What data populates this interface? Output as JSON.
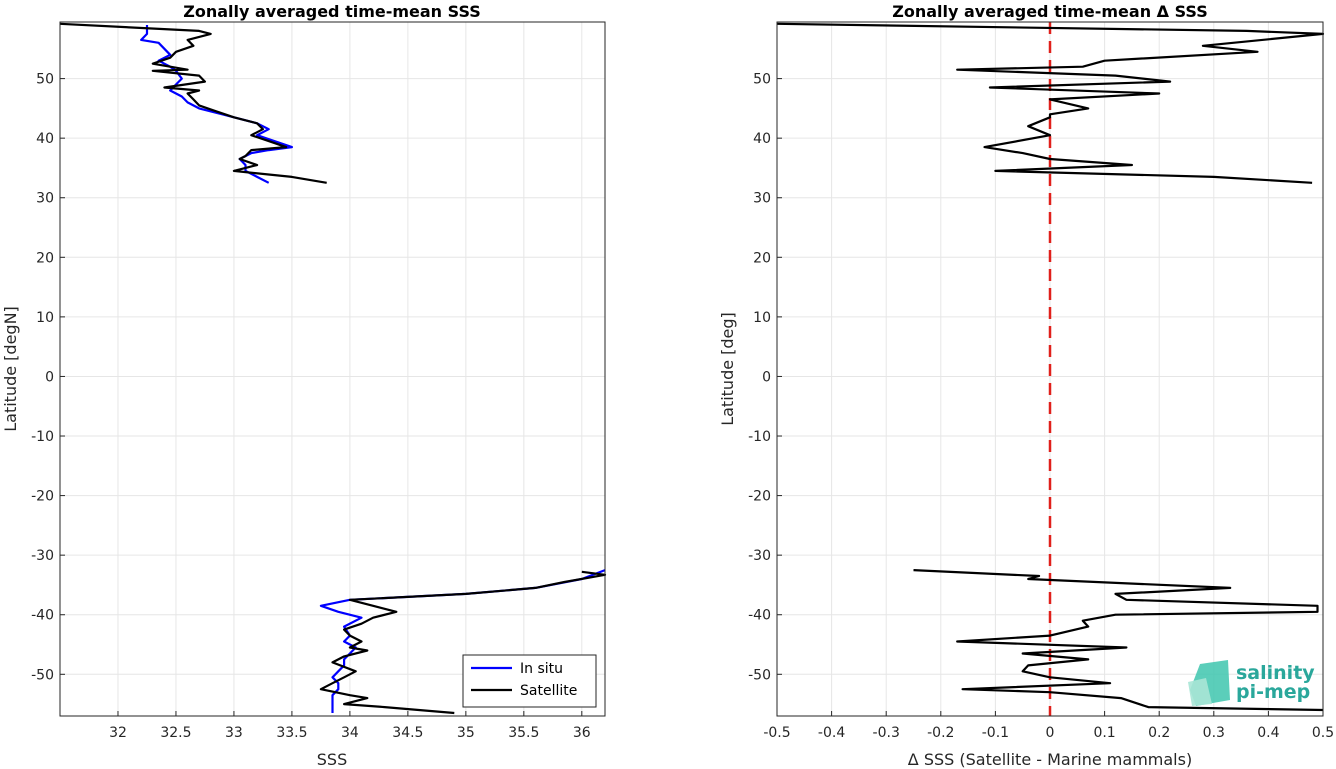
{
  "chart_data": [
    {
      "type": "line",
      "title": "Zonally averaged time-mean SSS",
      "xlabel": "SSS",
      "ylabel": "Latitude [degN]",
      "xlim": [
        31.5,
        36.2
      ],
      "ylim": [
        -57,
        59.5
      ],
      "xticks": [
        32,
        32.5,
        33,
        33.5,
        34,
        34.5,
        35,
        35.5,
        36
      ],
      "yticks": [
        -50,
        -40,
        -30,
        -20,
        -10,
        0,
        10,
        20,
        30,
        40,
        50
      ],
      "grid": true,
      "legend": {
        "position": "bottom-right",
        "entries": [
          "In situ",
          "Satellite"
        ]
      },
      "series": [
        {
          "name": "In situ",
          "color": "#0000ff",
          "segments": [
            [
              [
                32.25,
                59
              ],
              [
                32.25,
                57.5
              ],
              [
                32.2,
                56.5
              ],
              [
                32.35,
                56
              ],
              [
                32.4,
                55
              ],
              [
                32.45,
                54
              ],
              [
                32.35,
                53
              ],
              [
                32.45,
                52
              ],
              [
                32.5,
                51.3
              ],
              [
                32.55,
                50
              ],
              [
                32.5,
                49
              ],
              [
                32.45,
                48
              ],
              [
                32.55,
                47
              ],
              [
                32.6,
                46
              ],
              [
                32.7,
                45
              ],
              [
                32.9,
                44
              ],
              [
                33.2,
                42.5
              ],
              [
                33.3,
                41.5
              ],
              [
                33.2,
                40.5
              ],
              [
                33.5,
                38.5
              ],
              [
                33.3,
                38
              ],
              [
                33.15,
                37.5
              ],
              [
                33.05,
                36.5
              ],
              [
                33.1,
                35.5
              ],
              [
                33.1,
                34.5
              ],
              [
                33.2,
                33.5
              ],
              [
                33.3,
                32.5
              ]
            ],
            [
              [
                36.2,
                -32.5
              ],
              [
                36.0,
                -34
              ],
              [
                35.6,
                -35.5
              ],
              [
                35.0,
                -36.5
              ],
              [
                34.0,
                -37.5
              ],
              [
                33.75,
                -38.5
              ],
              [
                33.9,
                -39.5
              ],
              [
                34.1,
                -40.5
              ],
              [
                33.95,
                -42
              ],
              [
                34.0,
                -43.5
              ],
              [
                33.95,
                -44.5
              ],
              [
                34.05,
                -45.5
              ],
              [
                34.0,
                -46.5
              ],
              [
                33.95,
                -47.5
              ],
              [
                33.95,
                -48.5
              ],
              [
                33.9,
                -49.5
              ],
              [
                33.85,
                -50.5
              ],
              [
                33.9,
                -51.5
              ],
              [
                33.9,
                -52.5
              ],
              [
                33.85,
                -53.5
              ],
              [
                33.85,
                -54.5
              ],
              [
                33.85,
                -55.5
              ],
              [
                33.85,
                -56.5
              ]
            ]
          ]
        },
        {
          "name": "Satellite",
          "color": "#000000",
          "segments": [
            [
              [
                31.5,
                59.2
              ],
              [
                32.7,
                58
              ],
              [
                32.8,
                57.5
              ],
              [
                32.6,
                56.5
              ],
              [
                32.65,
                55.5
              ],
              [
                32.5,
                54.5
              ],
              [
                32.45,
                53.5
              ],
              [
                32.3,
                52.5
              ],
              [
                32.6,
                51.5
              ],
              [
                32.3,
                51.3
              ],
              [
                32.7,
                50.5
              ],
              [
                32.75,
                49.5
              ],
              [
                32.4,
                48.5
              ],
              [
                32.7,
                48
              ],
              [
                32.6,
                47.5
              ],
              [
                32.65,
                46.5
              ],
              [
                32.7,
                45.5
              ],
              [
                32.85,
                44.5
              ],
              [
                33.0,
                43.5
              ],
              [
                33.2,
                42.5
              ],
              [
                33.25,
                41.5
              ],
              [
                33.15,
                40.5
              ],
              [
                33.3,
                39.5
              ],
              [
                33.45,
                38.5
              ],
              [
                33.15,
                38
              ],
              [
                33.1,
                37
              ],
              [
                33.05,
                36.5
              ],
              [
                33.2,
                35.5
              ],
              [
                33.0,
                34.5
              ],
              [
                33.5,
                33.5
              ],
              [
                33.8,
                32.5
              ]
            ],
            [
              [
                36.0,
                -32.8
              ],
              [
                36.2,
                -33.3
              ],
              [
                35.85,
                -34.5
              ],
              [
                35.6,
                -35.5
              ],
              [
                35.0,
                -36.5
              ],
              [
                34.0,
                -37.5
              ],
              [
                34.2,
                -38.5
              ],
              [
                34.4,
                -39.5
              ],
              [
                34.2,
                -40.5
              ],
              [
                34.1,
                -41.5
              ],
              [
                33.95,
                -42.5
              ],
              [
                34.0,
                -43.5
              ],
              [
                34.1,
                -44.5
              ],
              [
                34.0,
                -45.5
              ],
              [
                34.15,
                -46
              ],
              [
                33.95,
                -47
              ],
              [
                33.85,
                -48
              ],
              [
                34.05,
                -49.5
              ],
              [
                33.95,
                -50.5
              ],
              [
                33.85,
                -51.5
              ],
              [
                33.75,
                -52.5
              ],
              [
                34.0,
                -53.5
              ],
              [
                34.15,
                -54
              ],
              [
                33.95,
                -55
              ],
              [
                34.3,
                -55.5
              ],
              [
                34.9,
                -56.5
              ]
            ]
          ]
        }
      ]
    },
    {
      "type": "line",
      "title": "Zonally averaged time-mean Δ SSS",
      "xlabel": "Δ SSS (Satellite - Marine mammals)",
      "ylabel": "Latitude [deg]",
      "xlim": [
        -0.5,
        0.5
      ],
      "ylim": [
        -57,
        59.5
      ],
      "xticks": [
        -0.5,
        -0.4,
        -0.3,
        -0.2,
        -0.1,
        0,
        0.1,
        0.2,
        0.3,
        0.4,
        0.5
      ],
      "yticks": [
        -50,
        -40,
        -30,
        -20,
        -10,
        0,
        10,
        20,
        30,
        40,
        50
      ],
      "grid": true,
      "reference_line": {
        "x": 0,
        "color": "#e0201b",
        "style": "dashed"
      },
      "series": [
        {
          "color": "#000000",
          "segments": [
            [
              [
                -0.5,
                59.2
              ],
              [
                0.36,
                58
              ],
              [
                0.5,
                57.5
              ],
              [
                0.28,
                55.5
              ],
              [
                0.38,
                54.5
              ],
              [
                0.1,
                53
              ],
              [
                0.06,
                52
              ],
              [
                -0.17,
                51.5
              ],
              [
                0.12,
                50.5
              ],
              [
                0.22,
                49.5
              ],
              [
                -0.11,
                48.5
              ],
              [
                0.2,
                47.5
              ],
              [
                0.0,
                46.5
              ],
              [
                0.07,
                45
              ],
              [
                0.0,
                44
              ],
              [
                0.0,
                43.5
              ],
              [
                -0.04,
                42
              ],
              [
                0.0,
                40.5
              ],
              [
                -0.12,
                38.5
              ],
              [
                -0.05,
                37.5
              ],
              [
                0.0,
                36.5
              ],
              [
                0.15,
                35.5
              ],
              [
                -0.1,
                34.5
              ],
              [
                0.3,
                33.5
              ],
              [
                0.48,
                32.5
              ]
            ],
            [
              [
                -0.25,
                -32.5
              ],
              [
                -0.02,
                -33.5
              ],
              [
                -0.04,
                -34
              ],
              [
                0.33,
                -35.5
              ],
              [
                0.12,
                -36.5
              ],
              [
                0.14,
                -37.5
              ],
              [
                0.49,
                -38.5
              ],
              [
                0.49,
                -39.5
              ],
              [
                0.12,
                -40
              ],
              [
                0.06,
                -41
              ],
              [
                0.07,
                -42
              ],
              [
                0.0,
                -43.5
              ],
              [
                -0.17,
                -44.5
              ],
              [
                0.14,
                -45.5
              ],
              [
                -0.05,
                -46.5
              ],
              [
                0.07,
                -47.5
              ],
              [
                -0.04,
                -48.5
              ],
              [
                -0.05,
                -49.5
              ],
              [
                0.0,
                -50.5
              ],
              [
                0.11,
                -51.5
              ],
              [
                -0.16,
                -52.5
              ],
              [
                0.0,
                -53
              ],
              [
                0.13,
                -54
              ],
              [
                0.18,
                -55.5
              ],
              [
                0.5,
                -56
              ]
            ]
          ]
        }
      ]
    }
  ],
  "logo": {
    "line1": "salinity",
    "line2": "pi-mep"
  }
}
